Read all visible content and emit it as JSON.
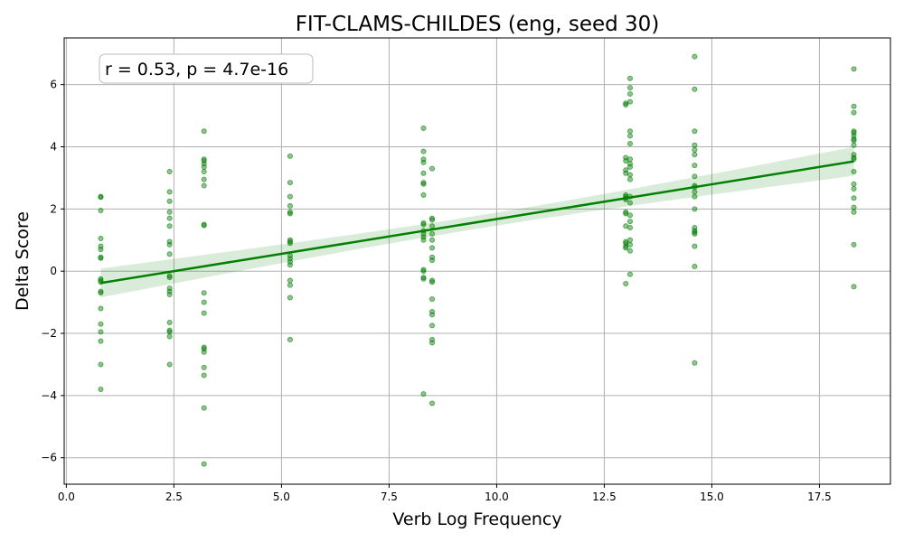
{
  "chart_data": {
    "type": "scatter",
    "title": "FIT-CLAMS-CHILDES (eng, seed 30)",
    "xlabel": "Verb Log Frequency",
    "ylabel": "Delta Score",
    "xlim": [
      -0.05,
      19.15
    ],
    "ylim": [
      -6.85,
      7.5
    ],
    "xticks": [
      0.0,
      2.5,
      5.0,
      7.5,
      10.0,
      12.5,
      15.0,
      17.5
    ],
    "xtick_labels": [
      "0.0",
      "2.5",
      "5.0",
      "7.5",
      "10.0",
      "12.5",
      "15.0",
      "17.5"
    ],
    "yticks": [
      -6,
      -4,
      -2,
      0,
      2,
      4,
      6
    ],
    "ytick_labels": [
      "−6",
      "−4",
      "−2",
      "0",
      "2",
      "4",
      "6"
    ],
    "grid": true,
    "annotation": "r = 0.53, p = 4.7e-16",
    "point_color": "#008000",
    "regression": {
      "x": [
        0.8,
        18.3
      ],
      "y": [
        -0.38,
        3.53
      ],
      "ci_half_width_at_ends": [
        0.5,
        0.43
      ],
      "ci_half_width_at_center": 0.21,
      "color": "#008000"
    },
    "points": [
      {
        "x": 0.8,
        "y": 2.4
      },
      {
        "x": 0.8,
        "y": 2.38
      },
      {
        "x": 0.8,
        "y": 1.95
      },
      {
        "x": 0.8,
        "y": 1.05
      },
      {
        "x": 0.8,
        "y": 0.8
      },
      {
        "x": 0.8,
        "y": 0.7
      },
      {
        "x": 0.8,
        "y": 0.45
      },
      {
        "x": 0.8,
        "y": 0.42
      },
      {
        "x": 0.8,
        "y": -0.25
      },
      {
        "x": 0.8,
        "y": -0.3
      },
      {
        "x": 0.8,
        "y": -0.35
      },
      {
        "x": 0.8,
        "y": -0.65
      },
      {
        "x": 0.8,
        "y": -0.7
      },
      {
        "x": 0.8,
        "y": -1.2
      },
      {
        "x": 0.8,
        "y": -1.7
      },
      {
        "x": 0.8,
        "y": -1.95
      },
      {
        "x": 0.8,
        "y": -2.25
      },
      {
        "x": 0.8,
        "y": -3.0
      },
      {
        "x": 0.8,
        "y": -3.8
      },
      {
        "x": 2.4,
        "y": 3.2
      },
      {
        "x": 2.4,
        "y": 2.55
      },
      {
        "x": 2.4,
        "y": 2.25
      },
      {
        "x": 2.4,
        "y": 1.9
      },
      {
        "x": 2.4,
        "y": 1.7
      },
      {
        "x": 2.4,
        "y": 1.45
      },
      {
        "x": 2.4,
        "y": 0.95
      },
      {
        "x": 2.4,
        "y": 0.85
      },
      {
        "x": 2.4,
        "y": 0.55
      },
      {
        "x": 2.4,
        "y": -0.15
      },
      {
        "x": 2.4,
        "y": -0.2
      },
      {
        "x": 2.4,
        "y": -0.55
      },
      {
        "x": 2.4,
        "y": -0.65
      },
      {
        "x": 2.4,
        "y": -0.75
      },
      {
        "x": 2.4,
        "y": -1.65
      },
      {
        "x": 2.4,
        "y": -1.9
      },
      {
        "x": 2.4,
        "y": -1.95
      },
      {
        "x": 2.4,
        "y": -2.1
      },
      {
        "x": 2.4,
        "y": -3.0
      },
      {
        "x": 3.2,
        "y": 4.5
      },
      {
        "x": 3.2,
        "y": 3.6
      },
      {
        "x": 3.2,
        "y": 3.55
      },
      {
        "x": 3.2,
        "y": 3.45
      },
      {
        "x": 3.2,
        "y": 3.35
      },
      {
        "x": 3.2,
        "y": 3.2
      },
      {
        "x": 3.2,
        "y": 2.95
      },
      {
        "x": 3.2,
        "y": 2.75
      },
      {
        "x": 3.2,
        "y": 1.5
      },
      {
        "x": 3.2,
        "y": 1.47
      },
      {
        "x": 3.2,
        "y": -0.7
      },
      {
        "x": 3.2,
        "y": -1.0
      },
      {
        "x": 3.2,
        "y": -1.35
      },
      {
        "x": 3.2,
        "y": -2.45
      },
      {
        "x": 3.2,
        "y": -2.5
      },
      {
        "x": 3.2,
        "y": -2.6
      },
      {
        "x": 3.2,
        "y": -3.1
      },
      {
        "x": 3.2,
        "y": -3.35
      },
      {
        "x": 3.2,
        "y": -4.4
      },
      {
        "x": 3.2,
        "y": -6.2
      },
      {
        "x": 5.2,
        "y": 3.7
      },
      {
        "x": 5.2,
        "y": 2.85
      },
      {
        "x": 5.2,
        "y": 2.4
      },
      {
        "x": 5.2,
        "y": 2.1
      },
      {
        "x": 5.2,
        "y": 1.9
      },
      {
        "x": 5.2,
        "y": 1.85
      },
      {
        "x": 5.2,
        "y": 1.0
      },
      {
        "x": 5.2,
        "y": 0.95
      },
      {
        "x": 5.2,
        "y": 0.9
      },
      {
        "x": 5.2,
        "y": 0.5
      },
      {
        "x": 5.2,
        "y": 0.4
      },
      {
        "x": 5.2,
        "y": 0.3
      },
      {
        "x": 5.2,
        "y": 0.2
      },
      {
        "x": 5.2,
        "y": -0.3
      },
      {
        "x": 5.2,
        "y": -0.45
      },
      {
        "x": 5.2,
        "y": -0.85
      },
      {
        "x": 5.2,
        "y": -2.2
      },
      {
        "x": 8.3,
        "y": 4.6
      },
      {
        "x": 8.3,
        "y": 3.85
      },
      {
        "x": 8.3,
        "y": 3.6
      },
      {
        "x": 8.3,
        "y": 3.5
      },
      {
        "x": 8.3,
        "y": 3.15
      },
      {
        "x": 8.3,
        "y": 2.85
      },
      {
        "x": 8.3,
        "y": 2.8
      },
      {
        "x": 8.3,
        "y": 2.45
      },
      {
        "x": 8.3,
        "y": 1.55
      },
      {
        "x": 8.3,
        "y": 1.5
      },
      {
        "x": 8.3,
        "y": 1.3
      },
      {
        "x": 8.3,
        "y": 1.2
      },
      {
        "x": 8.3,
        "y": 1.1
      },
      {
        "x": 8.3,
        "y": 1.0
      },
      {
        "x": 8.3,
        "y": 0.05
      },
      {
        "x": 8.3,
        "y": 0.0
      },
      {
        "x": 8.3,
        "y": -0.2
      },
      {
        "x": 8.3,
        "y": -0.25
      },
      {
        "x": 8.3,
        "y": -3.95
      },
      {
        "x": 8.5,
        "y": 3.3
      },
      {
        "x": 8.5,
        "y": 1.7
      },
      {
        "x": 8.5,
        "y": 1.65
      },
      {
        "x": 8.5,
        "y": 1.45
      },
      {
        "x": 8.5,
        "y": 1.2
      },
      {
        "x": 8.5,
        "y": 1.0
      },
      {
        "x": 8.5,
        "y": 0.75
      },
      {
        "x": 8.5,
        "y": 0.45
      },
      {
        "x": 8.5,
        "y": 0.35
      },
      {
        "x": 8.5,
        "y": -0.3
      },
      {
        "x": 8.5,
        "y": -0.35
      },
      {
        "x": 8.5,
        "y": -0.9
      },
      {
        "x": 8.5,
        "y": -1.3
      },
      {
        "x": 8.5,
        "y": -1.4
      },
      {
        "x": 8.5,
        "y": -1.75
      },
      {
        "x": 8.5,
        "y": -2.2
      },
      {
        "x": 8.5,
        "y": -2.3
      },
      {
        "x": 8.5,
        "y": -4.25
      },
      {
        "x": 13.0,
        "y": 5.4
      },
      {
        "x": 13.0,
        "y": 5.35
      },
      {
        "x": 13.0,
        "y": 3.65
      },
      {
        "x": 13.0,
        "y": 3.55
      },
      {
        "x": 13.0,
        "y": 3.25
      },
      {
        "x": 13.0,
        "y": 3.15
      },
      {
        "x": 13.0,
        "y": 2.45
      },
      {
        "x": 13.0,
        "y": 2.4
      },
      {
        "x": 13.0,
        "y": 2.35
      },
      {
        "x": 13.0,
        "y": 2.3
      },
      {
        "x": 13.0,
        "y": 1.9
      },
      {
        "x": 13.0,
        "y": 1.85
      },
      {
        "x": 13.0,
        "y": 1.45
      },
      {
        "x": 13.0,
        "y": 0.95
      },
      {
        "x": 13.0,
        "y": 0.9
      },
      {
        "x": 13.0,
        "y": 0.8
      },
      {
        "x": 13.0,
        "y": 0.75
      },
      {
        "x": 13.0,
        "y": -0.4
      },
      {
        "x": 13.1,
        "y": 6.2
      },
      {
        "x": 13.1,
        "y": 5.9
      },
      {
        "x": 13.1,
        "y": 5.7
      },
      {
        "x": 13.1,
        "y": 5.45
      },
      {
        "x": 13.1,
        "y": 4.5
      },
      {
        "x": 13.1,
        "y": 4.35
      },
      {
        "x": 13.1,
        "y": 4.1
      },
      {
        "x": 13.1,
        "y": 3.6
      },
      {
        "x": 13.1,
        "y": 3.45
      },
      {
        "x": 13.1,
        "y": 3.35
      },
      {
        "x": 13.1,
        "y": 3.1
      },
      {
        "x": 13.1,
        "y": 2.95
      },
      {
        "x": 13.1,
        "y": 2.4
      },
      {
        "x": 13.1,
        "y": 2.2
      },
      {
        "x": 13.1,
        "y": 1.8
      },
      {
        "x": 13.1,
        "y": 1.6
      },
      {
        "x": 13.1,
        "y": 1.4
      },
      {
        "x": 13.1,
        "y": 1.0
      },
      {
        "x": 13.1,
        "y": 0.85
      },
      {
        "x": 13.1,
        "y": 0.65
      },
      {
        "x": 13.1,
        "y": -0.1
      },
      {
        "x": 14.6,
        "y": 6.9
      },
      {
        "x": 14.6,
        "y": 5.85
      },
      {
        "x": 14.6,
        "y": 4.5
      },
      {
        "x": 14.6,
        "y": 4.05
      },
      {
        "x": 14.6,
        "y": 3.9
      },
      {
        "x": 14.6,
        "y": 3.75
      },
      {
        "x": 14.6,
        "y": 3.4
      },
      {
        "x": 14.6,
        "y": 3.05
      },
      {
        "x": 14.6,
        "y": 2.75
      },
      {
        "x": 14.6,
        "y": 2.7
      },
      {
        "x": 14.6,
        "y": 2.55
      },
      {
        "x": 14.6,
        "y": 2.4
      },
      {
        "x": 14.6,
        "y": 2.0
      },
      {
        "x": 14.6,
        "y": 1.4
      },
      {
        "x": 14.6,
        "y": 1.3
      },
      {
        "x": 14.6,
        "y": 1.25
      },
      {
        "x": 14.6,
        "y": 1.2
      },
      {
        "x": 14.6,
        "y": 0.8
      },
      {
        "x": 14.6,
        "y": 0.15
      },
      {
        "x": 14.6,
        "y": -2.95
      },
      {
        "x": 18.3,
        "y": 6.5
      },
      {
        "x": 18.3,
        "y": 5.3
      },
      {
        "x": 18.3,
        "y": 5.1
      },
      {
        "x": 18.3,
        "y": 4.5
      },
      {
        "x": 18.3,
        "y": 4.45
      },
      {
        "x": 18.3,
        "y": 4.35
      },
      {
        "x": 18.3,
        "y": 4.25
      },
      {
        "x": 18.3,
        "y": 4.2
      },
      {
        "x": 18.3,
        "y": 4.05
      },
      {
        "x": 18.3,
        "y": 3.75
      },
      {
        "x": 18.3,
        "y": 3.65
      },
      {
        "x": 18.3,
        "y": 3.6
      },
      {
        "x": 18.3,
        "y": 3.2
      },
      {
        "x": 18.3,
        "y": 2.8
      },
      {
        "x": 18.3,
        "y": 2.65
      },
      {
        "x": 18.3,
        "y": 2.35
      },
      {
        "x": 18.3,
        "y": 2.05
      },
      {
        "x": 18.3,
        "y": 1.9
      },
      {
        "x": 18.3,
        "y": 0.85
      },
      {
        "x": 18.3,
        "y": -0.5
      }
    ]
  }
}
